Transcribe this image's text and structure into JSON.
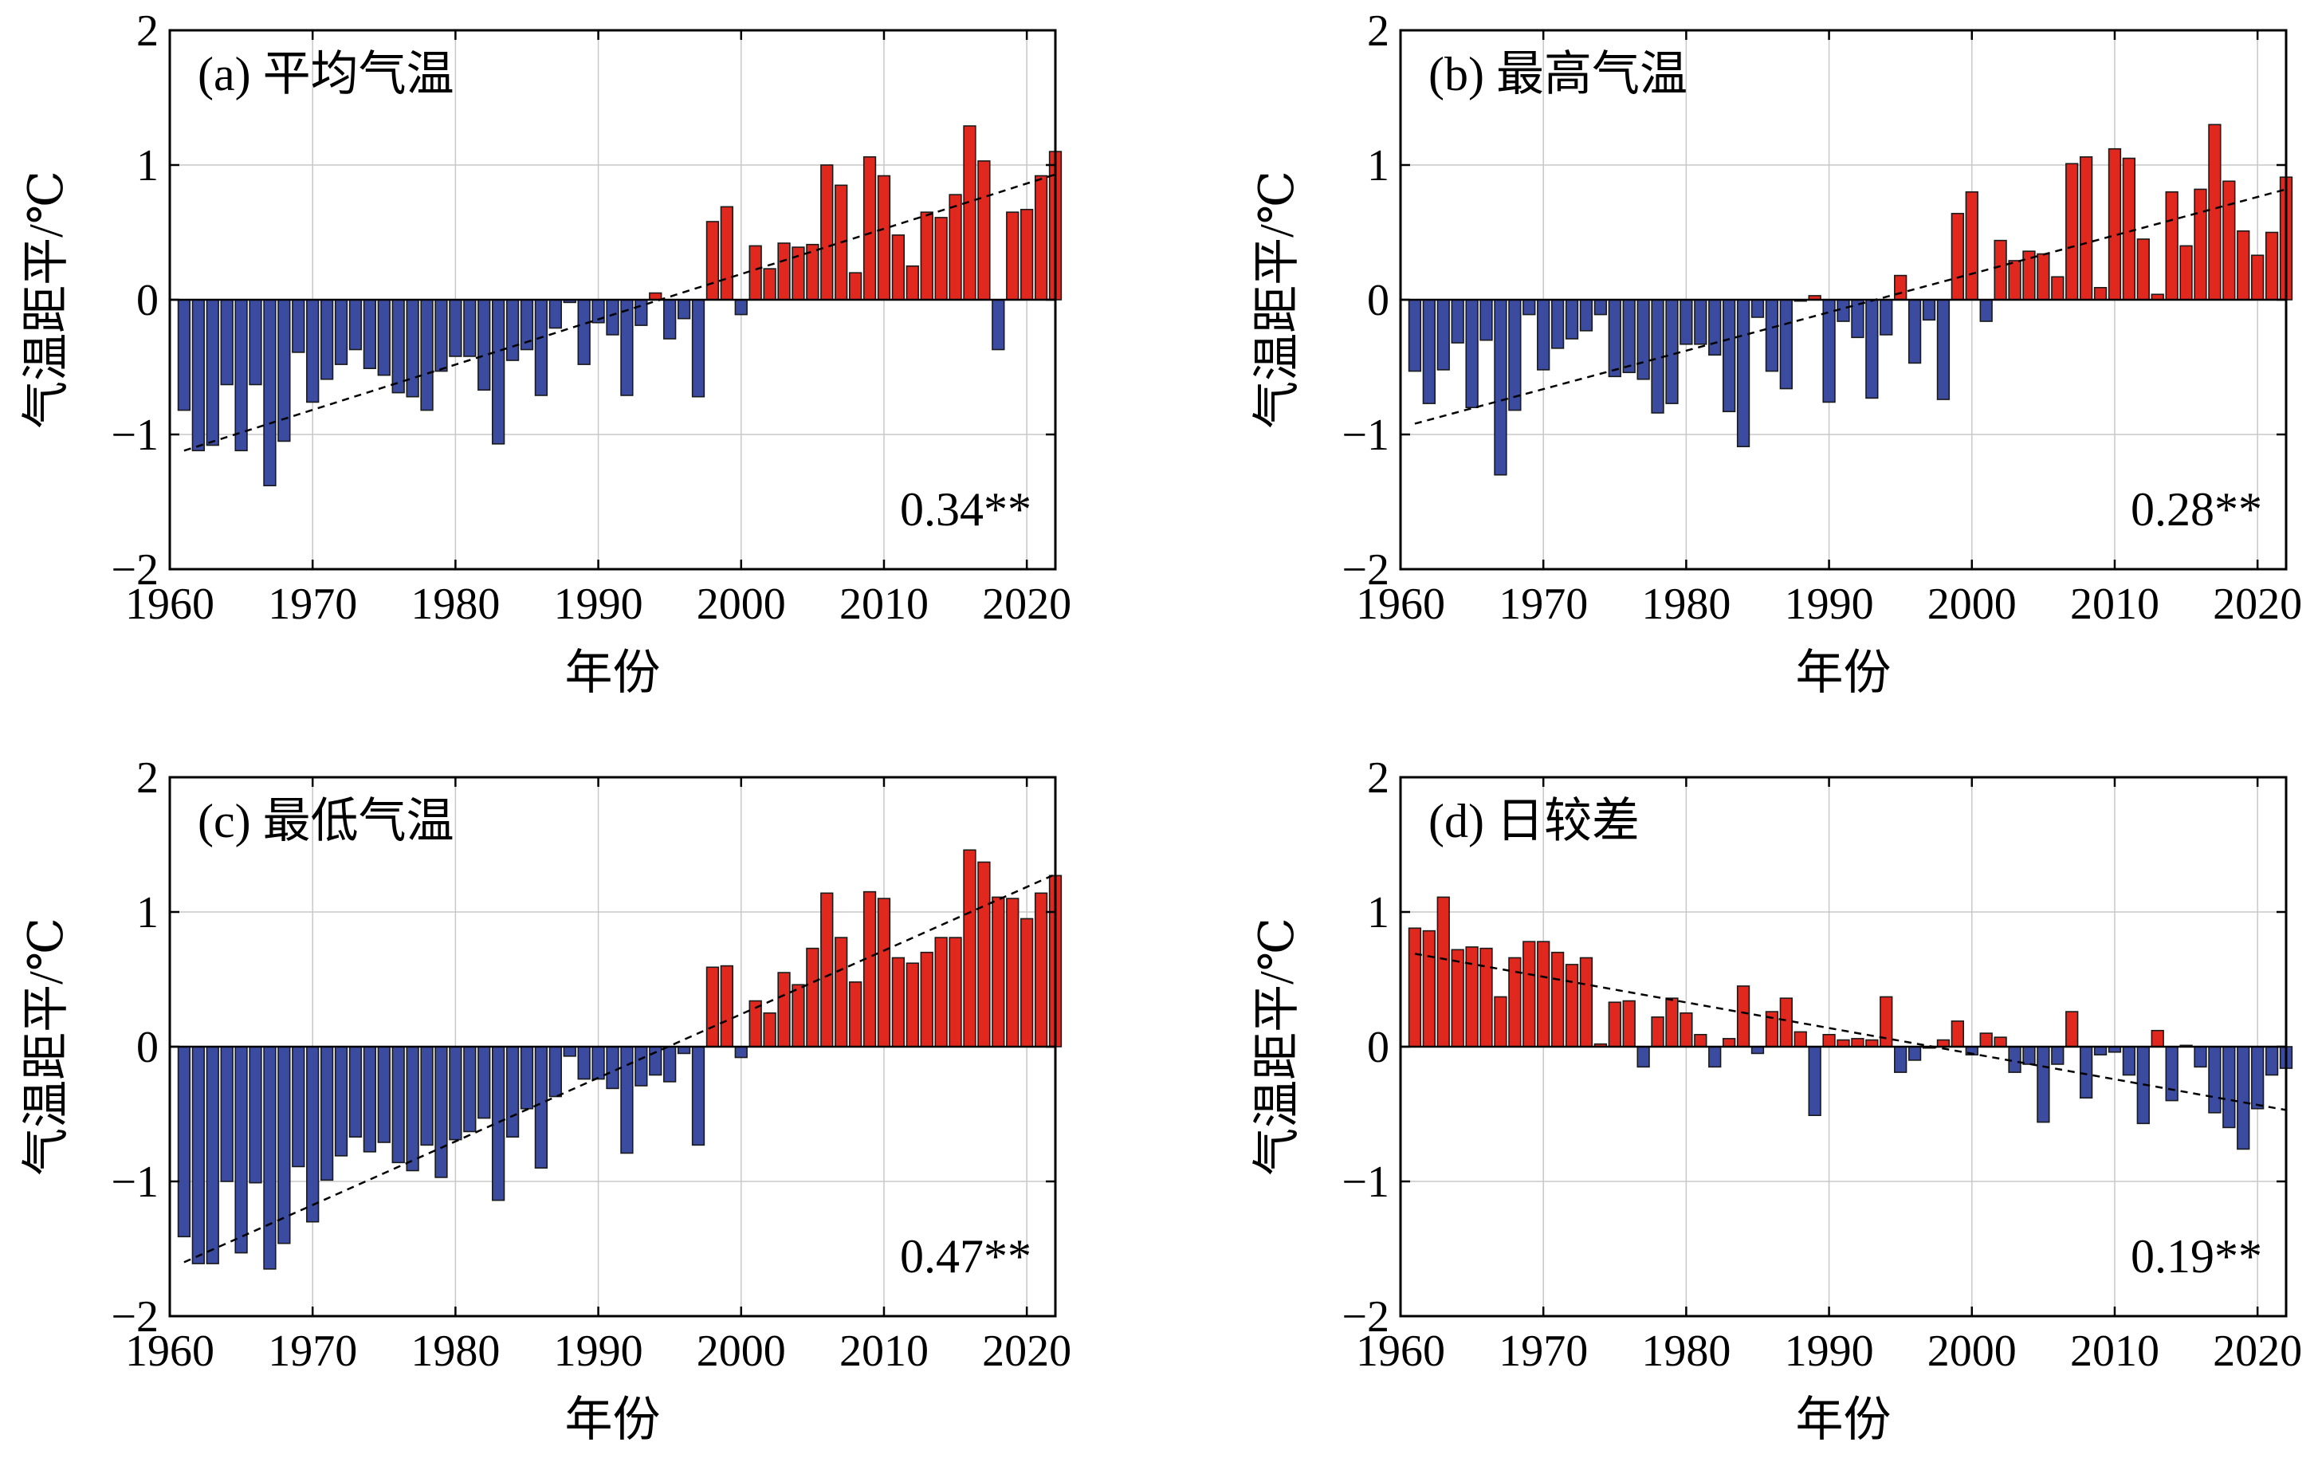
{
  "colors": {
    "positive": "#e0281f",
    "negative": "#3b4ba0",
    "trend": "#000000",
    "grid": "#c8c8c8"
  },
  "chart_data": [
    {
      "type": "bar",
      "title": "(a) 平均气温",
      "xlabel": "年份",
      "ylabel": "气温距平/℃",
      "xlim": [
        1960,
        2022
      ],
      "ylim": [
        -2,
        2
      ],
      "xticks": [
        "1960",
        "1970",
        "1980",
        "1990",
        "2000",
        "2010",
        "2020"
      ],
      "yticks": [
        "−2",
        "−1",
        "0",
        "1",
        "2"
      ],
      "grid": true,
      "annotation": "0.34**",
      "x": [
        1961,
        1962,
        1963,
        1964,
        1965,
        1966,
        1967,
        1968,
        1969,
        1970,
        1971,
        1972,
        1973,
        1974,
        1975,
        1976,
        1977,
        1978,
        1979,
        1980,
        1981,
        1982,
        1983,
        1984,
        1985,
        1986,
        1987,
        1988,
        1989,
        1990,
        1991,
        1992,
        1993,
        1994,
        1995,
        1996,
        1997,
        1998,
        1999,
        2000,
        2001,
        2002,
        2003,
        2004,
        2005,
        2006,
        2007,
        2008,
        2009,
        2010,
        2011,
        2012,
        2013,
        2014,
        2015,
        2016,
        2017,
        2018,
        2019,
        2020,
        2021,
        2022
      ],
      "values": [
        -0.82,
        -1.12,
        -1.08,
        -0.63,
        -1.12,
        -0.63,
        -1.38,
        -1.05,
        -0.39,
        -0.76,
        -0.59,
        -0.48,
        -0.37,
        -0.51,
        -0.56,
        -0.69,
        -0.72,
        -0.82,
        -0.53,
        -0.42,
        -0.42,
        -0.67,
        -1.07,
        -0.45,
        -0.37,
        -0.71,
        -0.21,
        -0.02,
        -0.48,
        -0.17,
        -0.26,
        -0.71,
        -0.19,
        0.05,
        -0.29,
        -0.14,
        -0.72,
        0.58,
        0.69,
        -0.11,
        0.4,
        0.23,
        0.42,
        0.39,
        0.41,
        1.0,
        0.85,
        0.2,
        1.06,
        0.92,
        0.48,
        0.25,
        0.65,
        0.61,
        0.78,
        1.29,
        1.03,
        -0.37,
        0.65,
        0.67,
        0.92,
        1.1
      ],
      "trend": [
        [
          1961,
          -1.12
        ],
        [
          2022,
          0.93
        ]
      ]
    },
    {
      "type": "bar",
      "title": "(b) 最高气温",
      "xlabel": "年份",
      "ylabel": "气温距平/℃",
      "xlim": [
        1960,
        2022
      ],
      "ylim": [
        -2,
        2
      ],
      "xticks": [
        "1960",
        "1970",
        "1980",
        "1990",
        "2000",
        "2010",
        "2020"
      ],
      "yticks": [
        "−2",
        "−1",
        "0",
        "1",
        "2"
      ],
      "grid": true,
      "annotation": "0.28**",
      "x": [
        1961,
        1962,
        1963,
        1964,
        1965,
        1966,
        1967,
        1968,
        1969,
        1970,
        1971,
        1972,
        1973,
        1974,
        1975,
        1976,
        1977,
        1978,
        1979,
        1980,
        1981,
        1982,
        1983,
        1984,
        1985,
        1986,
        1987,
        1988,
        1989,
        1990,
        1991,
        1992,
        1993,
        1994,
        1995,
        1996,
        1997,
        1998,
        1999,
        2000,
        2001,
        2002,
        2003,
        2004,
        2005,
        2006,
        2007,
        2008,
        2009,
        2010,
        2011,
        2012,
        2013,
        2014,
        2015,
        2016,
        2017,
        2018,
        2019,
        2020,
        2021,
        2022
      ],
      "values": [
        -0.53,
        -0.77,
        -0.52,
        -0.32,
        -0.8,
        -0.3,
        -1.3,
        -0.82,
        -0.11,
        -0.52,
        -0.36,
        -0.29,
        -0.23,
        -0.11,
        -0.57,
        -0.54,
        -0.59,
        -0.84,
        -0.77,
        -0.33,
        -0.33,
        -0.41,
        -0.83,
        -1.09,
        -0.13,
        -0.53,
        -0.66,
        -0.01,
        0.03,
        -0.76,
        -0.16,
        -0.28,
        -0.73,
        -0.26,
        0.18,
        -0.47,
        -0.15,
        -0.74,
        0.64,
        0.8,
        -0.16,
        0.44,
        0.29,
        0.36,
        0.34,
        0.17,
        1.01,
        1.06,
        0.09,
        1.12,
        1.05,
        0.45,
        0.04,
        0.8,
        0.4,
        0.82,
        1.3,
        0.88,
        0.51,
        0.33,
        0.5,
        0.91
      ],
      "trend": [
        [
          1961,
          -0.92
        ],
        [
          2022,
          0.82
        ]
      ]
    },
    {
      "type": "bar",
      "title": "(c) 最低气温",
      "xlabel": "年份",
      "ylabel": "气温距平/℃",
      "xlim": [
        1960,
        2022
      ],
      "ylim": [
        -2,
        2
      ],
      "xticks": [
        "1960",
        "1970",
        "1980",
        "1990",
        "2000",
        "2010",
        "2020"
      ],
      "yticks": [
        "−2",
        "−1",
        "0",
        "1",
        "2"
      ],
      "grid": true,
      "annotation": "0.47**",
      "x": [
        1961,
        1962,
        1963,
        1964,
        1965,
        1966,
        1967,
        1968,
        1969,
        1970,
        1971,
        1972,
        1973,
        1974,
        1975,
        1976,
        1977,
        1978,
        1979,
        1980,
        1981,
        1982,
        1983,
        1984,
        1985,
        1986,
        1987,
        1988,
        1989,
        1990,
        1991,
        1992,
        1993,
        1994,
        1995,
        1996,
        1997,
        1998,
        1999,
        2000,
        2001,
        2002,
        2003,
        2004,
        2005,
        2006,
        2007,
        2008,
        2009,
        2010,
        2011,
        2012,
        2013,
        2014,
        2015,
        2016,
        2017,
        2018,
        2019,
        2020,
        2021,
        2022
      ],
      "values": [
        -1.41,
        -1.61,
        -1.61,
        -1.0,
        -1.53,
        -1.01,
        -1.65,
        -1.46,
        -0.89,
        -1.3,
        -0.99,
        -0.81,
        -0.67,
        -0.78,
        -0.71,
        -0.86,
        -0.92,
        -0.73,
        -0.97,
        -0.69,
        -0.63,
        -0.53,
        -1.14,
        -0.67,
        -0.46,
        -0.9,
        -0.37,
        -0.07,
        -0.24,
        -0.24,
        -0.31,
        -0.79,
        -0.29,
        -0.21,
        -0.26,
        -0.05,
        -0.73,
        0.59,
        0.6,
        -0.08,
        0.34,
        0.25,
        0.55,
        0.46,
        0.73,
        1.14,
        0.81,
        0.48,
        1.15,
        1.1,
        0.66,
        0.62,
        0.7,
        0.81,
        0.81,
        1.46,
        1.37,
        1.11,
        1.1,
        0.95,
        1.14,
        1.27
      ],
      "trend": [
        [
          1961,
          -1.6
        ],
        [
          2022,
          1.28
        ]
      ]
    },
    {
      "type": "bar",
      "title": "(d) 日较差",
      "xlabel": "年份",
      "ylabel": "气温距平/℃",
      "xlim": [
        1960,
        2022
      ],
      "ylim": [
        -2,
        2
      ],
      "xticks": [
        "1960",
        "1970",
        "1980",
        "1990",
        "2000",
        "2010",
        "2020"
      ],
      "yticks": [
        "−2",
        "−1",
        "0",
        "1",
        "2"
      ],
      "grid": true,
      "annotation": "0.19**",
      "x": [
        1961,
        1962,
        1963,
        1964,
        1965,
        1966,
        1967,
        1968,
        1969,
        1970,
        1971,
        1972,
        1973,
        1974,
        1975,
        1976,
        1977,
        1978,
        1979,
        1980,
        1981,
        1982,
        1983,
        1984,
        1985,
        1986,
        1987,
        1988,
        1989,
        1990,
        1991,
        1992,
        1993,
        1994,
        1995,
        1996,
        1997,
        1998,
        1999,
        2000,
        2001,
        2002,
        2003,
        2004,
        2005,
        2006,
        2007,
        2008,
        2009,
        2010,
        2011,
        2012,
        2013,
        2014,
        2015,
        2016,
        2017,
        2018,
        2019,
        2020,
        2021,
        2022
      ],
      "values": [
        0.88,
        0.86,
        1.11,
        0.72,
        0.74,
        0.73,
        0.37,
        0.66,
        0.78,
        0.78,
        0.7,
        0.61,
        0.66,
        0.02,
        0.33,
        0.34,
        -0.15,
        0.22,
        0.36,
        0.25,
        0.09,
        -0.15,
        0.06,
        0.45,
        -0.05,
        0.26,
        0.36,
        0.11,
        -0.51,
        0.09,
        0.05,
        0.06,
        0.05,
        0.37,
        -0.19,
        -0.1,
        -0.01,
        0.05,
        0.19,
        -0.06,
        0.1,
        0.07,
        -0.19,
        -0.13,
        -0.56,
        -0.13,
        0.26,
        -0.38,
        -0.06,
        -0.04,
        -0.21,
        -0.57,
        0.12,
        -0.4,
        0.01,
        -0.15,
        -0.49,
        -0.6,
        -0.76,
        -0.46,
        -0.21,
        -0.16
      ],
      "trend": [
        [
          1961,
          0.69
        ],
        [
          2022,
          -0.47
        ]
      ]
    }
  ]
}
